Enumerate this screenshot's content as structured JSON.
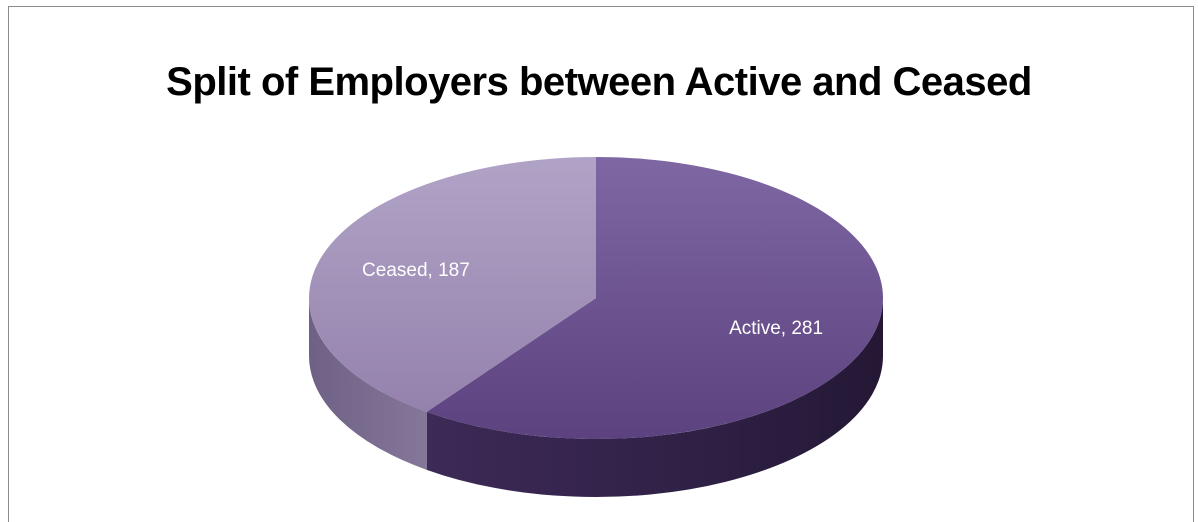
{
  "chart_data": {
    "type": "pie",
    "title": "Split of Employers between Active and Ceased",
    "slices": [
      {
        "label": "Active",
        "value": 281,
        "color": "#6a4f8e",
        "data_label": "Active, 281"
      },
      {
        "label": "Ceased",
        "value": 187,
        "color": "#a493bb",
        "data_label": "Ceased, 187"
      }
    ],
    "style": "3d",
    "legend": "none"
  }
}
